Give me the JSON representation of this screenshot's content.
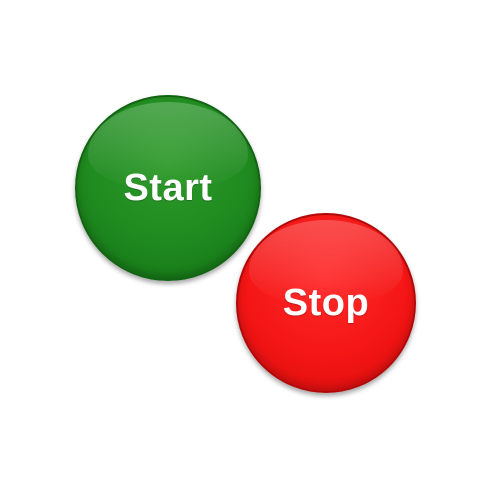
{
  "buttons": {
    "start": {
      "label": "Start",
      "color": "#1f8a1f"
    },
    "stop": {
      "label": "Stop",
      "color": "#f51616"
    }
  },
  "colors": {
    "background": "#ffffff",
    "label_text": "#ffffff"
  }
}
